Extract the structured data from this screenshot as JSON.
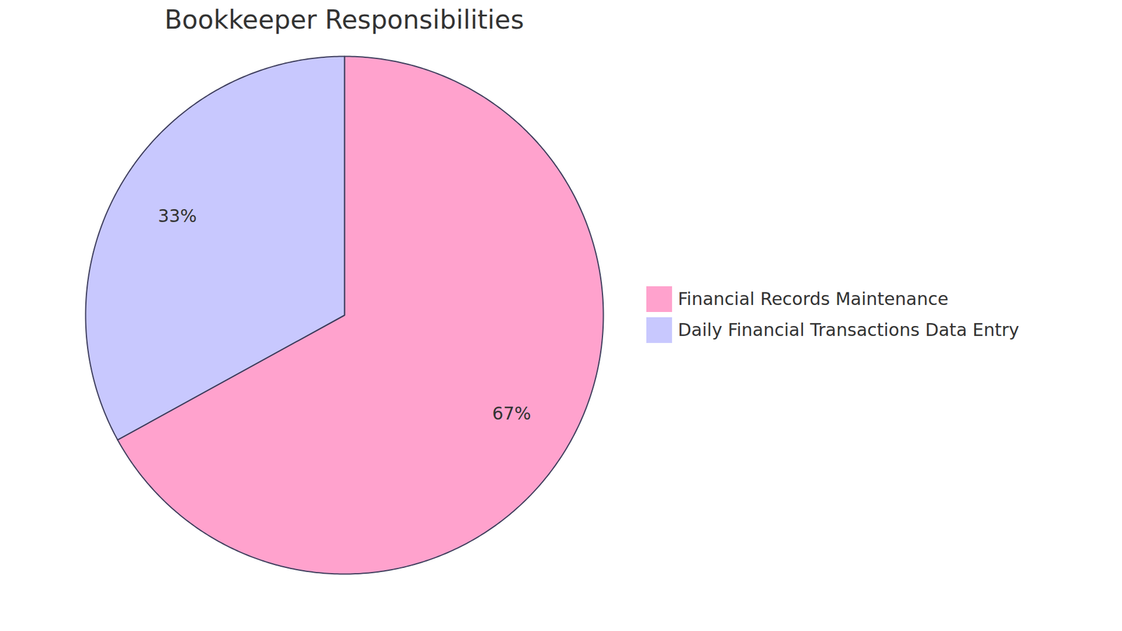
{
  "chart_data": {
    "type": "pie",
    "title": "Bookkeeper Responsibilities",
    "categories": [
      "Financial Records Maintenance",
      "Daily Financial Transactions Data Entry"
    ],
    "values": [
      67,
      33
    ],
    "value_labels": [
      "67%",
      "33%"
    ],
    "colors": [
      "#ffa2cd",
      "#c8c8fe"
    ],
    "data_labels": true,
    "legend": "right"
  }
}
